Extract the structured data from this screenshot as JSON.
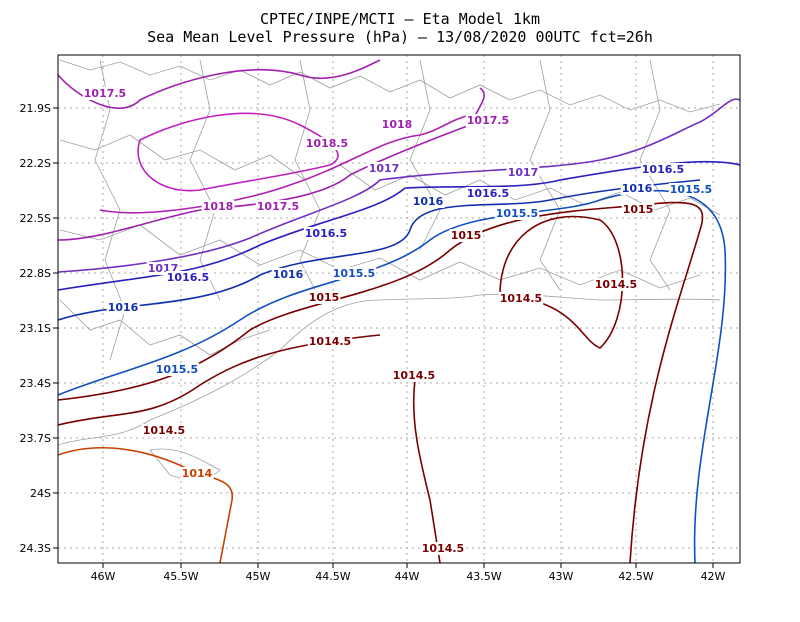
{
  "header": {
    "title": "CPTEC/INPE/MCTI –  Eta Model 1km",
    "subtitle": "Sea Mean Level Pressure (hPa) – 13/08/2020 00UTC fct=26h"
  },
  "lon_labels": [
    "46W",
    "45.5W",
    "45W",
    "44.5W",
    "44W",
    "43.5W",
    "43W",
    "42.5W",
    "42W"
  ],
  "lat_labels": [
    "21.9S",
    "22.2S",
    "22.5S",
    "22.8S",
    "23.1S",
    "23.4S",
    "23.7S",
    "24S",
    "24.3S"
  ],
  "contour_labels": [
    "1017.5",
    "1018.5",
    "1018",
    "1017.5",
    "1017",
    "1017",
    "1016.5",
    "1016",
    "1015.5",
    "1018",
    "1017.5",
    "1016",
    "1016.5",
    "1015.5",
    "1015",
    "1016.5",
    "1015",
    "1017",
    "1016.5",
    "1016",
    "1015.5",
    "1014.5",
    "1014.5",
    "1016",
    "1015",
    "1014.5",
    "1015.5",
    "1014.5",
    "1014.5",
    "1014",
    "1014.5"
  ]
}
